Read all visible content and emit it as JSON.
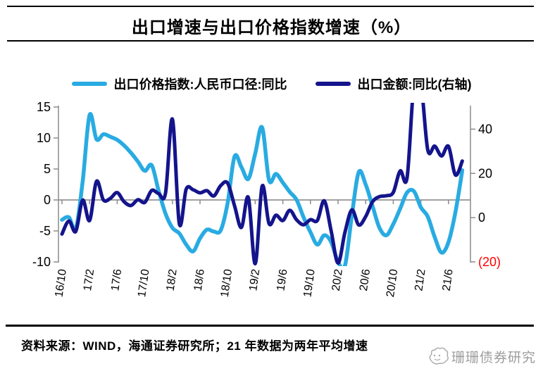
{
  "header": {
    "title": "出口增速与出口价格指数增速（%）"
  },
  "legend": [
    {
      "label": "出口价格指数:人民币口径:同比",
      "color": "#29ABE2"
    },
    {
      "label": "出口金额:同比(右轴)",
      "color": "#14148C"
    }
  ],
  "chart_data": {
    "type": "line",
    "title": "出口增速与出口价格指数增速（%）",
    "x": [
      "16/10",
      "16/11",
      "16/12",
      "17/1",
      "17/2",
      "17/3",
      "17/4",
      "17/5",
      "17/6",
      "17/7",
      "17/8",
      "17/9",
      "17/10",
      "17/11",
      "17/12",
      "18/1",
      "18/2",
      "18/3",
      "18/4",
      "18/5",
      "18/6",
      "18/7",
      "18/8",
      "18/9",
      "18/10",
      "18/11",
      "18/12",
      "19/1",
      "19/2",
      "19/3",
      "19/4",
      "19/5",
      "19/6",
      "19/7",
      "19/8",
      "19/9",
      "19/10",
      "19/11",
      "19/12",
      "20/1",
      "20/2",
      "20/3",
      "20/4",
      "20/5",
      "20/6",
      "20/7",
      "20/8",
      "20/9",
      "20/10",
      "20/11",
      "20/12",
      "21/1",
      "21/2",
      "21/3",
      "21/4",
      "21/5",
      "21/6",
      "21/7",
      "21/8"
    ],
    "x_ticks": [
      {
        "i": 0,
        "label": "16/10"
      },
      {
        "i": 4,
        "label": "17/2"
      },
      {
        "i": 8,
        "label": "17/6"
      },
      {
        "i": 12,
        "label": "17/10"
      },
      {
        "i": 16,
        "label": "18/2"
      },
      {
        "i": 20,
        "label": "18/6"
      },
      {
        "i": 24,
        "label": "18/10"
      },
      {
        "i": 28,
        "label": "19/2"
      },
      {
        "i": 32,
        "label": "19/6"
      },
      {
        "i": 36,
        "label": "19/10"
      },
      {
        "i": 40,
        "label": "20/2"
      },
      {
        "i": 44,
        "label": "20/6"
      },
      {
        "i": 48,
        "label": "20/10"
      },
      {
        "i": 52,
        "label": "21/2"
      },
      {
        "i": 56,
        "label": "21/6"
      }
    ],
    "left_axis": {
      "min": -10,
      "max": 15,
      "ticks": [
        {
          "v": 15,
          "label": "15"
        },
        {
          "v": 10,
          "label": "10"
        },
        {
          "v": 5,
          "label": "5"
        },
        {
          "v": 0,
          "label": "0"
        },
        {
          "v": -5,
          "label": "-5"
        },
        {
          "v": -10,
          "label": "-10"
        }
      ]
    },
    "right_axis": {
      "min": -20,
      "max": 50,
      "ticks": [
        {
          "v": 40,
          "label": "40"
        },
        {
          "v": 20,
          "label": "20"
        },
        {
          "v": 0,
          "label": "0"
        },
        {
          "v": -20,
          "label": "(20)",
          "color": "#FF0000"
        }
      ]
    },
    "zero_gridline": true,
    "grid": false,
    "legend_position": "top",
    "series": [
      {
        "name": "出口价格指数:人民币口径:同比",
        "axis": "left",
        "color": "#29ABE2",
        "values": [
          -3.2,
          -2.8,
          -4.6,
          3.0,
          13.7,
          9.8,
          10.6,
          10.2,
          9.7,
          8.8,
          7.6,
          6.2,
          4.7,
          5.6,
          1.5,
          -2.2,
          -4.5,
          -5.4,
          -7.2,
          -8.3,
          -6.2,
          -4.8,
          -5.1,
          -4.9,
          -0.5,
          7.0,
          5.3,
          3.4,
          7.5,
          11.7,
          3.2,
          4.2,
          2.8,
          1.3,
          0.0,
          -2.8,
          -5.2,
          -7.2,
          -5.7,
          -6.8,
          -10.0,
          -10.6,
          -2.5,
          4.5,
          2.5,
          -1.0,
          -4.5,
          -5.7,
          -3.9,
          -1.4,
          1.2,
          1.4,
          -1.2,
          -2.7,
          -6.0,
          -8.5,
          -6.8,
          -2.0,
          4.8
        ]
      },
      {
        "name": "出口金额:同比(右轴)",
        "axis": "right",
        "color": "#14148C",
        "values": [
          -7.4,
          -1.5,
          -6.2,
          7.9,
          -1.3,
          16.4,
          8.0,
          8.7,
          11.3,
          7.2,
          5.5,
          8.1,
          6.9,
          12.3,
          10.9,
          11.1,
          44.5,
          -2.7,
          12.9,
          12.6,
          11.2,
          12.2,
          9.8,
          14.5,
          15.6,
          5.4,
          -4.4,
          9.1,
          -20.8,
          14.2,
          -2.7,
          1.1,
          -1.3,
          3.3,
          -1.0,
          -3.2,
          -0.9,
          -1.3,
          7.6,
          -6.0,
          -20.5,
          -6.6,
          3.5,
          -3.3,
          0.5,
          7.2,
          9.5,
          9.9,
          11.4,
          21.1,
          18.1,
          60.6,
          60.6,
          30.6,
          32.3,
          27.9,
          32.2,
          19.3,
          25.6
        ]
      }
    ]
  },
  "footer": {
    "source": "资料来源：WIND，海通证券研究所；21 年数据为两年平均增速"
  },
  "watermark": {
    "text": "珊珊债券研究"
  },
  "colors": {
    "axis": "#8C8C8C",
    "zero_line": "#808080",
    "negative_right_tick": "#FF0000",
    "watermark": "#9D9D9D"
  }
}
